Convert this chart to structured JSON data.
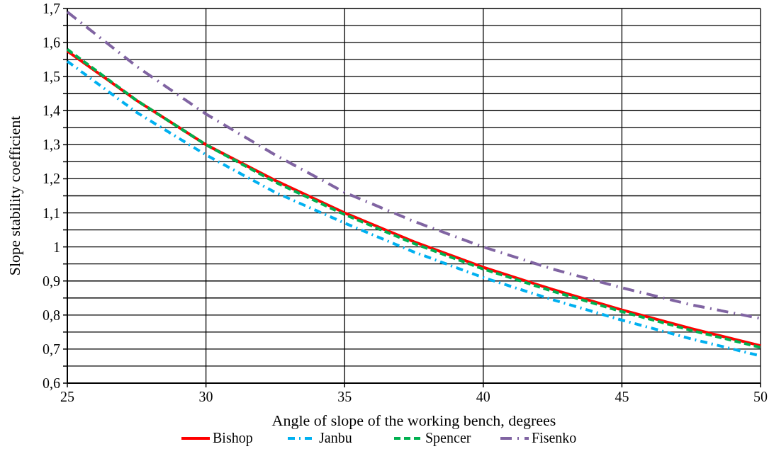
{
  "chart_data": {
    "type": "line",
    "xlabel": "Angle of slope of the working bench, degrees",
    "ylabel": "Slope stability coefficient",
    "x": [
      25,
      27.5,
      30,
      32.5,
      35,
      37.5,
      40,
      42.5,
      45,
      47.5,
      50
    ],
    "series": [
      {
        "name": "Bishop",
        "color": "#ff0000",
        "line_style": "solid",
        "values": [
          1.575,
          1.43,
          1.3,
          1.195,
          1.1,
          1.015,
          0.94,
          0.875,
          0.815,
          0.76,
          0.71
        ]
      },
      {
        "name": "Janbu",
        "color": "#00b0f0",
        "line_style": "dashdot",
        "values": [
          1.545,
          1.395,
          1.27,
          1.16,
          1.07,
          0.985,
          0.91,
          0.845,
          0.785,
          0.73,
          0.68
        ]
      },
      {
        "name": "Spencer",
        "color": "#00b050",
        "line_style": "dashed",
        "values": [
          1.58,
          1.43,
          1.3,
          1.19,
          1.095,
          1.01,
          0.935,
          0.87,
          0.81,
          0.755,
          0.705
        ]
      },
      {
        "name": "Fisenko",
        "color": "#8064a2",
        "line_style": "longdashdot",
        "values": [
          1.69,
          1.53,
          1.39,
          1.27,
          1.16,
          1.075,
          1,
          0.935,
          0.88,
          0.83,
          0.79
        ]
      }
    ],
    "xlim": [
      25,
      50
    ],
    "xticks": [
      25,
      30,
      35,
      40,
      45,
      50
    ],
    "ylim": [
      0.6,
      1.7
    ],
    "yticks": [
      {
        "value": 0.6,
        "label": "0,6"
      },
      {
        "value": 0.65,
        "label": null
      },
      {
        "value": 0.7,
        "label": "0,7"
      },
      {
        "value": 0.75,
        "label": null
      },
      {
        "value": 0.8,
        "label": "0,8"
      },
      {
        "value": 0.85,
        "label": null
      },
      {
        "value": 0.9,
        "label": "0,9"
      },
      {
        "value": 0.95,
        "label": null
      },
      {
        "value": 1,
        "label": "1"
      },
      {
        "value": 1.05,
        "label": null
      },
      {
        "value": 1.1,
        "label": "1,1"
      },
      {
        "value": 1.15,
        "label": null
      },
      {
        "value": 1.2,
        "label": "1,2"
      },
      {
        "value": 1.25,
        "label": null
      },
      {
        "value": 1.3,
        "label": "1,3"
      },
      {
        "value": 1.35,
        "label": null
      },
      {
        "value": 1.4,
        "label": "1,4"
      },
      {
        "value": 1.45,
        "label": null
      },
      {
        "value": 1.5,
        "label": "1,5"
      },
      {
        "value": 1.55,
        "label": null
      },
      {
        "value": 1.6,
        "label": "1,6"
      },
      {
        "value": 1.65,
        "label": null
      },
      {
        "value": 1.7,
        "label": "1,7"
      }
    ],
    "grid": true,
    "legend": "bottom",
    "marker": "none"
  }
}
